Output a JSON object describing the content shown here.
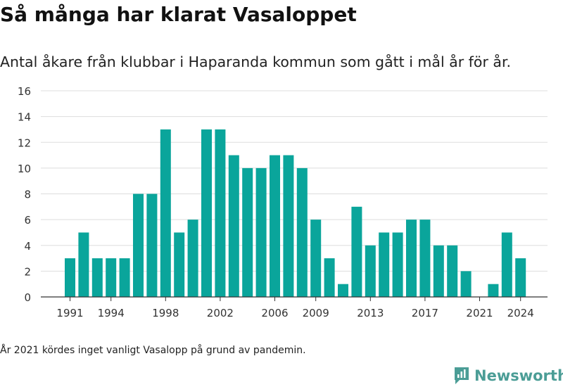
{
  "header": {
    "title": "Så många har klarat Vasaloppet",
    "subtitle": "Antal åkare från klubbar i Haparanda kommun som gått i mål år för år."
  },
  "footer": {
    "note": "År 2021 kördes inget vanligt Vasalopp på grund av pandemin.",
    "brand": "Newsworthy"
  },
  "colors": {
    "bar": "#0aa59b",
    "brand": "#4b9d96",
    "grid": "#dddddd",
    "axis": "#333333"
  },
  "chart_data": {
    "type": "bar",
    "title": "Så många har klarat Vasaloppet",
    "subtitle": "Antal åkare från klubbar i Haparanda kommun som gått i mål år för år.",
    "xlabel": "",
    "ylabel": "",
    "ylim": [
      0,
      16
    ],
    "yticks": [
      0,
      2,
      4,
      6,
      8,
      10,
      12,
      14,
      16
    ],
    "xticks": [
      "1991",
      "1994",
      "1998",
      "2002",
      "2006",
      "2009",
      "2013",
      "2017",
      "2021",
      "2024"
    ],
    "grid": true,
    "categories": [
      "1991",
      "1992",
      "1993",
      "1994",
      "1995",
      "1996",
      "1997",
      "1998",
      "1999",
      "2000",
      "2001",
      "2002",
      "2003",
      "2004",
      "2005",
      "2006",
      "2007",
      "2008",
      "2009",
      "2010",
      "2011",
      "2012",
      "2013",
      "2014",
      "2015",
      "2016",
      "2017",
      "2018",
      "2019",
      "2020",
      "2021",
      "2022",
      "2023",
      "2024"
    ],
    "values": [
      3,
      5,
      3,
      3,
      3,
      8,
      8,
      13,
      5,
      6,
      13,
      13,
      11,
      10,
      10,
      11,
      11,
      10,
      6,
      3,
      1,
      7,
      4,
      5,
      5,
      6,
      6,
      4,
      4,
      2,
      0,
      1,
      5,
      3
    ]
  }
}
